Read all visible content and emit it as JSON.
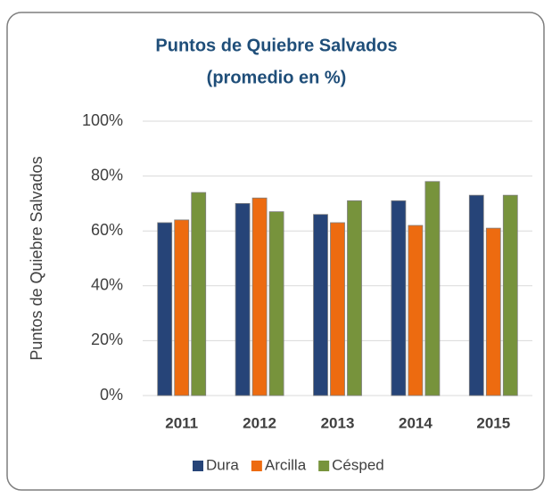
{
  "chart_data": {
    "type": "bar",
    "title": [
      "Puntos de Quiebre Salvados",
      "(promedio en %)"
    ],
    "y_label": "Puntos de Quiebre Salvados",
    "categories": [
      "2011",
      "2012",
      "2013",
      "2014",
      "2015"
    ],
    "series": [
      {
        "name": "Dura",
        "color": "#264478",
        "values": [
          63,
          70,
          66,
          71,
          73
        ]
      },
      {
        "name": "Arcilla",
        "color": "#ed6b10",
        "values": [
          64,
          72,
          63,
          62,
          61
        ]
      },
      {
        "name": "Césped",
        "color": "#77933c",
        "values": [
          74,
          67,
          71,
          78,
          73
        ]
      }
    ],
    "ylim": [
      0,
      100
    ],
    "yticks": [
      {
        "value": 0,
        "label": "0%"
      },
      {
        "value": 20,
        "label": "20%"
      },
      {
        "value": 40,
        "label": "40%"
      },
      {
        "value": 60,
        "label": "60%"
      },
      {
        "value": 80,
        "label": "80%"
      },
      {
        "value": 100,
        "label": "100%"
      }
    ],
    "grid": true,
    "legend": "bottom"
  }
}
